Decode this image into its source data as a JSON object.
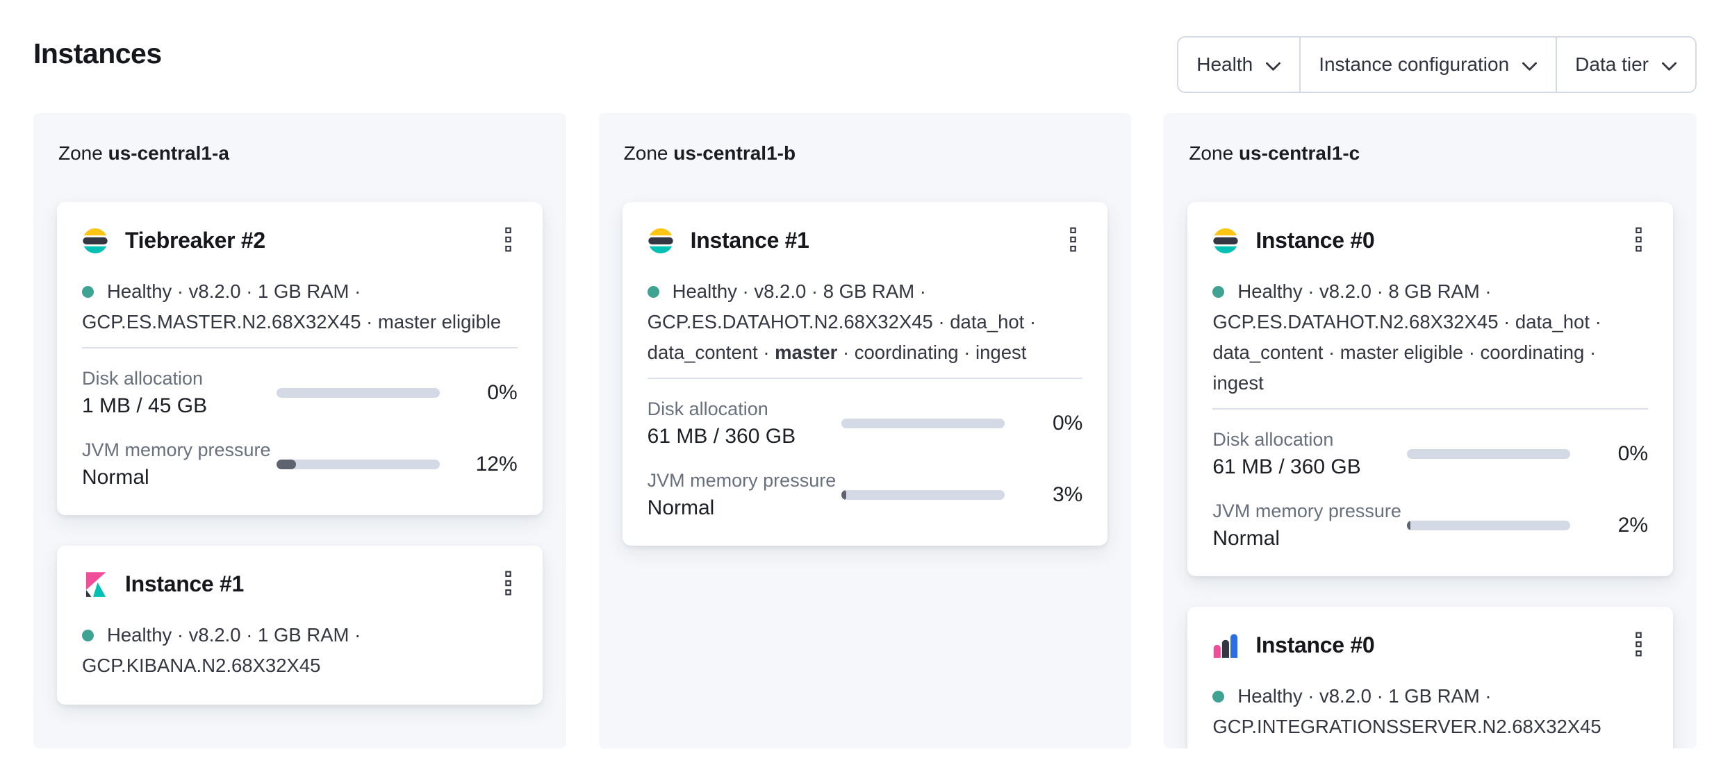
{
  "header": {
    "title": "Instances",
    "filters": [
      {
        "label": "Health",
        "icon": "chevron-down-icon"
      },
      {
        "label": "Instance configuration",
        "icon": "chevron-down-icon"
      },
      {
        "label": "Data tier",
        "icon": "chevron-down-icon"
      }
    ]
  },
  "colors": {
    "panel_bg": "#f5f7fa",
    "health_dot": "#3ea393",
    "bar_track": "#d3dae6",
    "bar_fill": "#5e646f",
    "logo_yellow": "#fec514",
    "logo_dark": "#343741",
    "logo_teal": "#00bfb3",
    "logo_pink": "#f04e98",
    "logo_blue": "#2b6de4"
  },
  "zones": [
    {
      "label": "Zone",
      "name": "us-central1-a",
      "cards": [
        {
          "icon": "elasticsearch-logo-icon",
          "title": "Tiebreaker #2",
          "status_lines": [
            {
              "dot": true,
              "segments": [
                {
                  "text": "Healthy · v8.2.0 · 1 GB RAM ·"
                }
              ]
            },
            {
              "segments": [
                {
                  "text": "GCP.ES.MASTER.N2.68X32X45 · master eligible"
                }
              ]
            }
          ],
          "metrics": [
            {
              "label": "Disk allocation",
              "value": "1 MB / 45 GB",
              "percent": 0,
              "percent_label": "0%"
            },
            {
              "label": "JVM memory pressure",
              "value": "Normal",
              "percent": 12,
              "percent_label": "12%"
            }
          ]
        },
        {
          "icon": "kibana-logo-icon",
          "title": "Instance #1",
          "status_lines": [
            {
              "dot": true,
              "segments": [
                {
                  "text": "Healthy · v8.2.0 · 1 GB RAM ·"
                }
              ]
            },
            {
              "segments": [
                {
                  "text": "GCP.KIBANA.N2.68X32X45"
                }
              ]
            }
          ],
          "metrics": []
        }
      ]
    },
    {
      "label": "Zone",
      "name": "us-central1-b",
      "cards": [
        {
          "icon": "elasticsearch-logo-icon",
          "title": "Instance #1",
          "status_lines": [
            {
              "dot": true,
              "segments": [
                {
                  "text": "Healthy · v8.2.0 · 8 GB RAM ·"
                }
              ]
            },
            {
              "segments": [
                {
                  "text": "GCP.ES.DATAHOT.N2.68X32X45 · data_hot ·"
                }
              ]
            },
            {
              "segments": [
                {
                  "text": "data_content · "
                },
                {
                  "text": "master",
                  "bold": true
                },
                {
                  "text": " · coordinating · ingest"
                }
              ]
            }
          ],
          "metrics": [
            {
              "label": "Disk allocation",
              "value": "61 MB / 360 GB",
              "percent": 0,
              "percent_label": "0%"
            },
            {
              "label": "JVM memory pressure",
              "value": "Normal",
              "percent": 3,
              "percent_label": "3%"
            }
          ]
        }
      ]
    },
    {
      "label": "Zone",
      "name": "us-central1-c",
      "cards": [
        {
          "icon": "elasticsearch-logo-icon",
          "title": "Instance #0",
          "status_lines": [
            {
              "dot": true,
              "segments": [
                {
                  "text": "Healthy · v8.2.0 · 8 GB RAM ·"
                }
              ]
            },
            {
              "segments": [
                {
                  "text": "GCP.ES.DATAHOT.N2.68X32X45 · data_hot ·"
                }
              ]
            },
            {
              "segments": [
                {
                  "text": "data_content · master eligible · coordinating · ingest"
                }
              ]
            }
          ],
          "metrics": [
            {
              "label": "Disk allocation",
              "value": "61 MB / 360 GB",
              "percent": 0,
              "percent_label": "0%"
            },
            {
              "label": "JVM memory pressure",
              "value": "Normal",
              "percent": 2,
              "percent_label": "2%"
            }
          ]
        },
        {
          "icon": "integrations-server-logo-icon",
          "title": "Instance #0",
          "status_lines": [
            {
              "dot": true,
              "segments": [
                {
                  "text": "Healthy · v8.2.0 · 1 GB RAM ·"
                }
              ]
            },
            {
              "segments": [
                {
                  "text": "GCP.INTEGRATIONSSERVER.N2.68X32X45"
                }
              ]
            }
          ],
          "metrics": []
        }
      ]
    }
  ]
}
